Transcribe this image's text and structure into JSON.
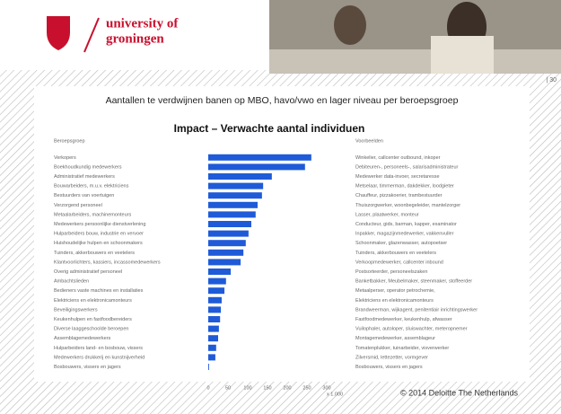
{
  "header": {
    "logo_line1": "university of",
    "logo_line2": "groningen"
  },
  "page_number": "| 30",
  "slide_title": "Aantallen te verdwijnen banen op MBO, havo/vwo en lager niveau per beroepsgroep",
  "footer": "© 2014 Deloitte The Netherlands",
  "chart_data": {
    "type": "hbar",
    "title": "Impact – Verwachte aantal individuen",
    "category_header": "Beroepsgroep",
    "examples_header": "Voorbeelden",
    "xlabel": "x 1.000",
    "color": "#1f5bd8",
    "xlim": [
      0,
      300
    ],
    "xticks": [
      0,
      50,
      100,
      150,
      200,
      250,
      300
    ],
    "categories": [
      "Verkopers",
      "Boekhoudkundig medewerkers",
      "Administratief medewerkers",
      "Bouwarbeiders, m.u.v. elektriciens",
      "Bestuurders van voertuigen",
      "Verzorgend personeel",
      "Metaalarbeiders, machinemonteurs",
      "Medewerkers persoonlijke dienstverlening",
      "Hulparbeiders bouw, industrie en vervoer",
      "Huishoudelijke hulpen en schoonmakers",
      "Tuinders, akkerbouwers en veetelers",
      "Klantvoorlichters, kassiers, incassomedewerkers",
      "Overig administratief personeel",
      "Ambachtslieden",
      "Bedieners vaste machines en installaties",
      "Elektriciens en elektronicamonteurs",
      "Beveiligingswerkers",
      "Keukenhulpen en fastfoodbereiders",
      "Diverse laaggeschoolde beroepen",
      "Assemblagemedewerkers",
      "Hulparbeiders land- en bosbouw, vissers",
      "Medewerkers drukkerij en kunstnijverheid",
      "Bosbouwers, vissers en jagers"
    ],
    "values": [
      261,
      245,
      161,
      139,
      136,
      125,
      120,
      109,
      102,
      95,
      89,
      82,
      57,
      45,
      41,
      34,
      32,
      30,
      27,
      25,
      20,
      18,
      2
    ],
    "examples": [
      "Winkelier, callcenter outbound, inkoper",
      "Debiteuren-, personeels-, salarisadministrateur",
      "Medewerker data-invoer, secretaresse",
      "Metselaar, timmerman, dakdekker, loodgieter",
      "Chauffeur, pizzakoerier, trambestuurder",
      "Thuiszorgwerker, woonbegeleider, mantelzorger",
      "Lasser, plaatwerker, monteur",
      "Conducteur, gids, barman, kapper, examinator",
      "Inpakker, magazijnmedewerker, vakkenvuller",
      "Schoonmaker, glazenwasser, autopoetser",
      "Tuinders, akkerbouwers en veetelers",
      "Verkoopmedewerker, callcenter inbound",
      "Postsorteerder, personeelszaken",
      "Banketbakker, Meubelmaker, steenmaker, stoffeerder",
      "Metaalperser, operator petrochemie,",
      "Elektriciens en elektronicamonteurs",
      "Brandweerman, wijkagent, penitentiair inrichtingswerker",
      "Fastfoodmedewerker, keukenhulp, afwasser",
      "Vuilophaler, autoloper, sluiswachter, meteropnemer",
      "Montagemedewerker, assemblageur",
      "Tomatenplukker, tuinarbeider, visverwerker",
      "Zilversmid, lettezetter, vormgever",
      "Bosbouwers, vissers en jagers"
    ]
  }
}
